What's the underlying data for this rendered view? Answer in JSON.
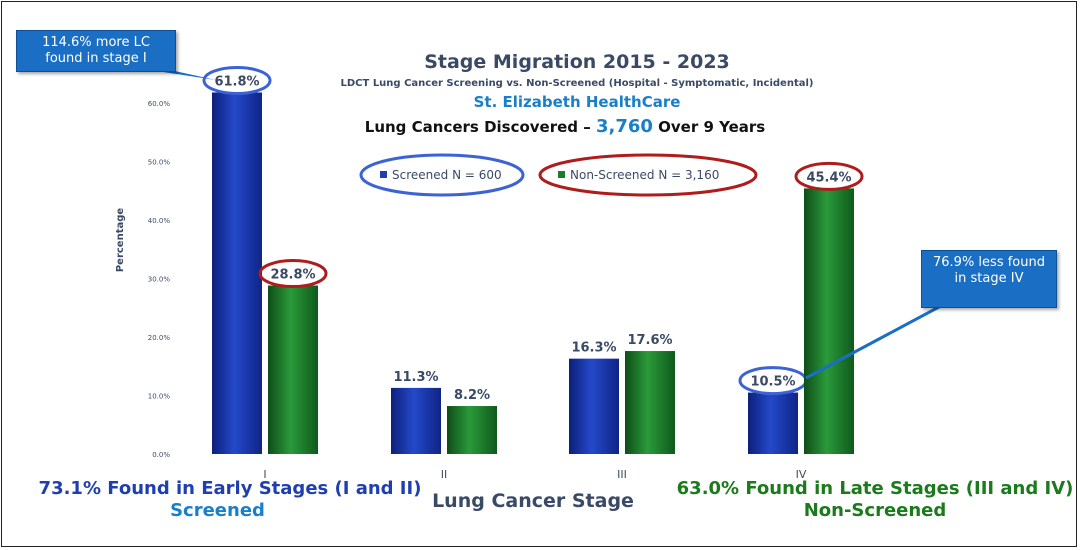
{
  "chart_data": {
    "type": "bar",
    "title": "Stage Migration 2015 - 2023",
    "subtitle": "LDCT Lung Cancer Screening vs. Non-Screened (Hospital - Symptomatic, Incidental)",
    "org": "St. Elizabeth HealthCare",
    "headline_prefix": "Lung Cancers Discovered – ",
    "headline_number": "3,760",
    "headline_suffix": " Over 9 Years",
    "xlabel": "Lung Cancer Stage",
    "ylabel": "Percentage",
    "categories": [
      "I",
      "II",
      "III",
      "IV"
    ],
    "yticks": [
      "0.0%",
      "10.0%",
      "20.0%",
      "30.0%",
      "40.0%",
      "50.0%",
      "60.0%"
    ],
    "ylim": [
      0,
      65
    ],
    "grid": false,
    "legend_position": "top-center",
    "series": [
      {
        "name": "Screened N = 600",
        "values": [
          61.8,
          11.3,
          16.3,
          10.5
        ],
        "labels": [
          "61.8%",
          "11.3%",
          "16.3%",
          "10.5%"
        ],
        "color": "#1f3fb0"
      },
      {
        "name": "Non-Screened N = 3,160",
        "values": [
          28.8,
          8.2,
          17.6,
          45.4
        ],
        "labels": [
          "28.8%",
          "8.2%",
          "17.6%",
          "45.4%"
        ],
        "color": "#1e7a2e"
      }
    ],
    "colors": {
      "screened_circle": "#3b63d6",
      "nonscreened_circle": "#b01c1c"
    }
  },
  "callouts": {
    "left": "114.6% more LC found in stage I",
    "right": "76.9% less found in stage IV"
  },
  "footer": {
    "left_line1": "73.1% Found in Early Stages (I and II)",
    "left_line2": "Screened",
    "right_line1": "63.0% Found in Late Stages (III and IV)",
    "right_line2": "Non-Screened"
  }
}
